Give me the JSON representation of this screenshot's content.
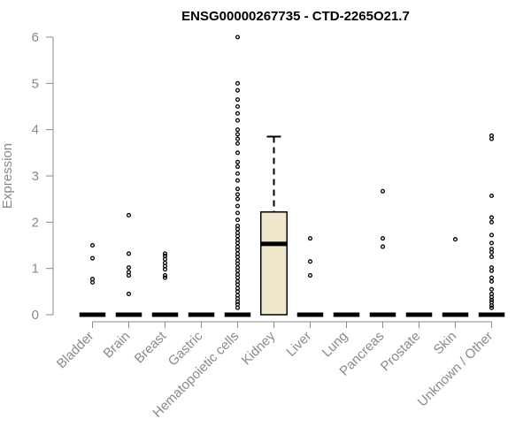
{
  "chart_data": {
    "type": "boxplot",
    "title": "ENSG00000267735 - CTD-2265O21.7",
    "ylabel": "Expression",
    "xlabel": "",
    "ylim": [
      0,
      6
    ],
    "yticks": [
      "0",
      "1",
      "2",
      "3",
      "4",
      "5",
      "6"
    ],
    "categories": [
      "Bladder",
      "Brain",
      "Breast",
      "Gastric",
      "Hematopoietic cells",
      "Kidney",
      "Liver",
      "Lung",
      "Pancreas",
      "Prostate",
      "Skin",
      "Unknown / Other"
    ],
    "box_fill": "#f0e8cc",
    "series": [
      {
        "q1": 0,
        "median": 0,
        "q3": 0,
        "whisker_low": 0,
        "whisker_high": 0,
        "outliers": [
          0.7,
          0.77,
          1.22,
          1.5
        ]
      },
      {
        "q1": 0,
        "median": 0,
        "q3": 0,
        "whisker_low": 0,
        "whisker_high": 0,
        "outliers": [
          0.45,
          0.85,
          0.92,
          1.02,
          1.32,
          2.15
        ]
      },
      {
        "q1": 0,
        "median": 0,
        "q3": 0,
        "whisker_low": 0,
        "whisker_high": 0,
        "outliers": [
          0.8,
          0.85,
          0.98,
          1.05,
          1.12,
          1.2,
          1.27,
          1.32
        ]
      },
      {
        "q1": 0,
        "median": 0,
        "q3": 0,
        "whisker_low": 0,
        "whisker_high": 0,
        "outliers": []
      },
      {
        "q1": 0,
        "median": 0,
        "q3": 0,
        "whisker_low": 0,
        "whisker_high": 0,
        "outliers": [
          0.15,
          0.22,
          0.28,
          0.35,
          0.42,
          0.5,
          0.57,
          0.65,
          0.72,
          0.8,
          0.87,
          0.95,
          1.02,
          1.1,
          1.17,
          1.25,
          1.32,
          1.4,
          1.47,
          1.55,
          1.62,
          1.7,
          1.77,
          1.85,
          1.92,
          2.05,
          2.2,
          2.35,
          2.5,
          2.6,
          2.72,
          2.9,
          3.05,
          3.2,
          3.3,
          3.5,
          3.7,
          3.8,
          3.9,
          4.0,
          4.2,
          4.35,
          4.5,
          4.65,
          4.85,
          5.0,
          6.0
        ]
      },
      {
        "q1": 0,
        "median": 1.53,
        "q3": 2.22,
        "whisker_low": 0,
        "whisker_high": 3.85,
        "outliers": []
      },
      {
        "q1": 0,
        "median": 0,
        "q3": 0,
        "whisker_low": 0,
        "whisker_high": 0,
        "outliers": [
          0.85,
          1.15,
          1.65
        ]
      },
      {
        "q1": 0,
        "median": 0,
        "q3": 0,
        "whisker_low": 0,
        "whisker_high": 0,
        "outliers": []
      },
      {
        "q1": 0,
        "median": 0,
        "q3": 0,
        "whisker_low": 0,
        "whisker_high": 0,
        "outliers": [
          1.47,
          1.65,
          2.67
        ]
      },
      {
        "q1": 0,
        "median": 0,
        "q3": 0,
        "whisker_low": 0,
        "whisker_high": 0,
        "outliers": []
      },
      {
        "q1": 0,
        "median": 0,
        "q3": 0,
        "whisker_low": 0,
        "whisker_high": 0,
        "outliers": [
          1.63
        ]
      },
      {
        "q1": 0,
        "median": 0,
        "q3": 0,
        "whisker_low": 0,
        "whisker_high": 0,
        "outliers": [
          0.15,
          0.2,
          0.27,
          0.32,
          0.38,
          0.45,
          0.55,
          0.72,
          0.8,
          0.95,
          1.02,
          1.25,
          1.35,
          1.42,
          1.55,
          1.72,
          2.0,
          2.1,
          2.57,
          3.8,
          3.87
        ]
      }
    ]
  }
}
